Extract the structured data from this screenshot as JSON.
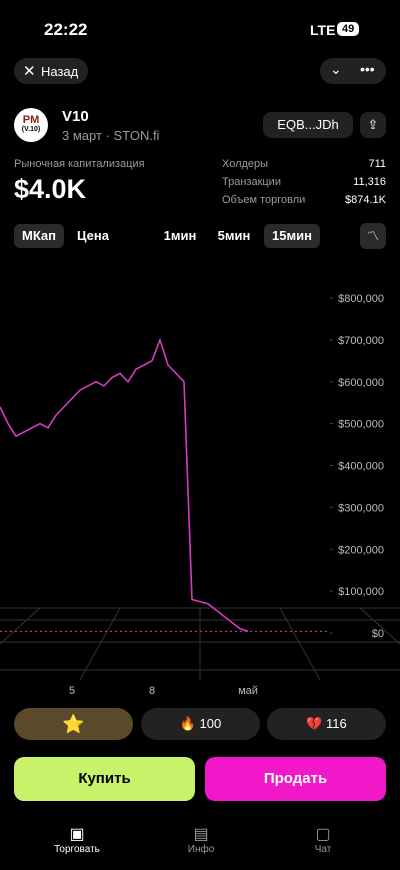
{
  "status_bar": {
    "time": "22:22",
    "network": "LTE",
    "battery": "49"
  },
  "header": {
    "back": "Назад"
  },
  "token": {
    "logo_top": "PM",
    "logo_bottom": "(V.10)",
    "name": "V10",
    "subtitle": "3 март · STON.fi",
    "address": "EQB...JDh"
  },
  "market_cap": {
    "label": "Рыночная капитализация",
    "value": "$4.0K"
  },
  "stats": [
    {
      "label": "Холдеры",
      "value": "711"
    },
    {
      "label": "Транзакции",
      "value": "11,316"
    },
    {
      "label": "Объем торговли",
      "value": "$874.1K"
    }
  ],
  "tabs": {
    "mode": [
      "МКап",
      "Цена"
    ],
    "interval": [
      "1мин",
      "5мин",
      "15мин"
    ]
  },
  "chart_data": {
    "type": "line",
    "color": "#d63cc0",
    "categories": [
      null,
      null,
      null,
      null,
      null,
      null,
      null,
      null,
      null,
      "5",
      null,
      null,
      null,
      null,
      null,
      null,
      null,
      null,
      null,
      "8",
      null,
      null,
      null,
      null,
      null,
      null,
      null,
      null,
      null,
      null,
      null,
      "май"
    ],
    "values": [
      540000,
      500000,
      470000,
      480000,
      490000,
      500000,
      490000,
      520000,
      540000,
      560000,
      580000,
      590000,
      600000,
      590000,
      610000,
      620000,
      600000,
      630000,
      640000,
      650000,
      700000,
      640000,
      620000,
      600000,
      80000,
      75000,
      70000,
      55000,
      40000,
      25000,
      10000,
      4000
    ],
    "ylim": [
      0,
      800000
    ],
    "yticks": [
      {
        "value": 0,
        "label": "$0"
      },
      {
        "value": 100000,
        "label": "$100,000"
      },
      {
        "value": 200000,
        "label": "$200,000"
      },
      {
        "value": 300000,
        "label": "$300,000"
      },
      {
        "value": 400000,
        "label": "$400,000"
      },
      {
        "value": 500000,
        "label": "$500,000"
      },
      {
        "value": 600000,
        "label": "$600,000"
      },
      {
        "value": 700000,
        "label": "$700,000"
      },
      {
        "value": 800000,
        "label": "$800,000"
      }
    ]
  },
  "reactions": [
    {
      "count": "100"
    },
    {
      "count": "116"
    }
  ],
  "actions": {
    "buy": "Купить",
    "sell": "Продать"
  },
  "nav": [
    "Торговать",
    "Инфо",
    "Чат"
  ]
}
